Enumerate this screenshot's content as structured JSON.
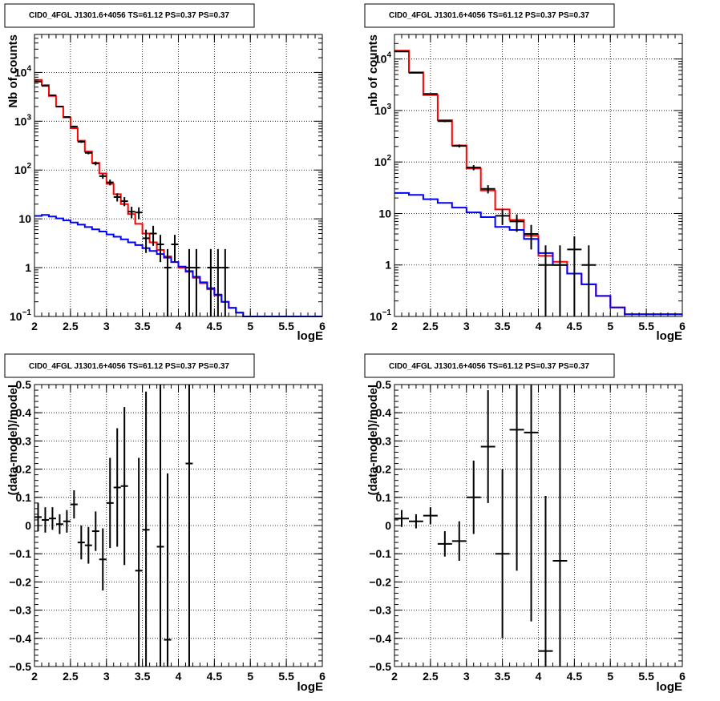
{
  "colors": {
    "data": "#000000",
    "total_model": "#ff0000",
    "background_model": "#0000ff",
    "grid": "#000000"
  },
  "chart_data": [
    {
      "id": "counts-left",
      "type": "line",
      "title": "CID0_4FGL J1301.6+4056 TS=61.12 PS=0.37 PS=0.37",
      "xlabel": "logE",
      "ylabel": "Nb of counts",
      "y_scale": "log",
      "xlim": [
        2,
        6
      ],
      "ylim": [
        0.1,
        60000
      ],
      "xticks": [
        "2",
        "2.5",
        "3",
        "3.5",
        "4",
        "4.5",
        "5",
        "5.5",
        "6"
      ],
      "yticks": [
        {
          "value": 0.1,
          "base": "10",
          "exp": "−1"
        },
        {
          "value": 1,
          "label": "1"
        },
        {
          "value": 10,
          "label": "10"
        },
        {
          "value": 100,
          "base": "10",
          "exp": "2"
        },
        {
          "value": 1000,
          "base": "10",
          "exp": "3"
        },
        {
          "value": 10000,
          "base": "10",
          "exp": "4"
        }
      ],
      "grid": true,
      "model_edges": [
        2.0,
        2.1,
        2.2,
        2.3,
        2.4,
        2.5,
        2.6,
        2.7,
        2.8,
        2.9,
        3.0,
        3.1,
        3.2,
        3.3,
        3.4,
        3.5,
        3.6,
        3.7,
        3.8,
        3.9,
        4.0,
        4.1,
        4.2,
        4.3,
        4.4,
        4.5,
        4.6,
        4.7,
        4.8,
        4.9,
        5.0,
        5.1,
        5.2,
        5.3,
        5.4,
        5.5,
        5.6,
        5.7,
        5.8,
        5.9,
        6.0
      ],
      "total_model": [
        7000,
        5500,
        3300,
        2000,
        1200,
        720,
        400,
        240,
        140,
        85,
        52,
        32,
        20,
        12.5,
        7.9,
        5,
        3.3,
        2.3,
        1.7,
        1.3,
        1,
        0.82,
        0.62,
        0.48,
        0.36,
        0.27,
        0.2,
        0.15,
        0.12,
        0.1,
        0.1,
        0.1,
        0.1,
        0.1,
        0.1,
        0.1,
        0.1,
        0.1,
        0.1,
        0.1
      ],
      "background_model": [
        11.5,
        12,
        11.2,
        10.2,
        9.3,
        8.4,
        7.6,
        6.8,
        6.1,
        5.5,
        4.8,
        4.3,
        3.8,
        3.3,
        2.9,
        2.5,
        2.2,
        1.9,
        1.6,
        1.3,
        1.05,
        0.85,
        0.65,
        0.5,
        0.38,
        0.28,
        0.2,
        0.15,
        0.12,
        0.1,
        0.1,
        0.1,
        0.1,
        0.1,
        0.1,
        0.1,
        0.1,
        0.1,
        0.1,
        0.1
      ],
      "data_points": [
        {
          "x": 2.05,
          "y": 6500,
          "yerr": [
            80,
            80
          ]
        },
        {
          "x": 2.15,
          "y": 5300,
          "yerr": [
            73,
            73
          ]
        },
        {
          "x": 2.25,
          "y": 3400,
          "yerr": [
            58,
            58
          ]
        },
        {
          "x": 2.35,
          "y": 1990,
          "yerr": [
            45,
            45
          ]
        },
        {
          "x": 2.45,
          "y": 1220,
          "yerr": [
            35,
            35
          ]
        },
        {
          "x": 2.55,
          "y": 780,
          "yerr": [
            28,
            28
          ]
        },
        {
          "x": 2.65,
          "y": 380,
          "yerr": [
            20,
            20
          ]
        },
        {
          "x": 2.75,
          "y": 225,
          "yerr": [
            15,
            15
          ]
        },
        {
          "x": 2.85,
          "y": 137,
          "yerr": [
            12,
            12
          ]
        },
        {
          "x": 2.95,
          "y": 75,
          "yerr": [
            9,
            9
          ]
        },
        {
          "x": 3.05,
          "y": 56,
          "yerr": [
            7.5,
            7.5
          ]
        },
        {
          "x": 3.15,
          "y": 28,
          "yerr": [
            5.3,
            5.3
          ]
        },
        {
          "x": 3.25,
          "y": 23,
          "yerr": [
            4.8,
            4.8
          ]
        },
        {
          "x": 3.35,
          "y": 14,
          "yerr": [
            3.7,
            3.7
          ]
        },
        {
          "x": 3.45,
          "y": 13.5,
          "yerr": [
            3.7,
            3.7
          ]
        },
        {
          "x": 3.55,
          "y": 4,
          "yerr": [
            2,
            2
          ]
        },
        {
          "x": 3.65,
          "y": 5,
          "yerr": [
            2.2,
            2.2
          ]
        },
        {
          "x": 3.75,
          "y": 3,
          "yerr": [
            1.7,
            1.7
          ]
        },
        {
          "x": 3.85,
          "y": 1,
          "yerr": [
            0.95,
            1.4
          ]
        },
        {
          "x": 3.95,
          "y": 3,
          "yerr": [
            1.7,
            1.7
          ]
        },
        {
          "x": 4.15,
          "y": 1,
          "yerr": [
            0.95,
            1.4
          ]
        },
        {
          "x": 4.25,
          "y": 1,
          "yerr": [
            0.95,
            1.4
          ]
        },
        {
          "x": 4.45,
          "y": 1,
          "yerr": [
            0.95,
            1.4
          ]
        },
        {
          "x": 4.55,
          "y": 1,
          "yerr": [
            0.95,
            1.4
          ]
        },
        {
          "x": 4.65,
          "y": 1,
          "yerr": [
            0.95,
            1.4
          ]
        }
      ]
    },
    {
      "id": "counts-right",
      "type": "line",
      "title": "CID0_4FGL J1301.6+4056 TS=61.12 PS=0.37 PS=0.37",
      "xlabel": "logE",
      "ylabel": "nb of counts",
      "y_scale": "log",
      "xlim": [
        2,
        6
      ],
      "ylim": [
        0.1,
        30000
      ],
      "xticks": [
        "2",
        "2.5",
        "3",
        "3.5",
        "4",
        "4.5",
        "5",
        "5.5",
        "6"
      ],
      "yticks": [
        {
          "value": 0.1,
          "base": "10",
          "exp": "−1"
        },
        {
          "value": 1,
          "label": "1"
        },
        {
          "value": 10,
          "label": "10"
        },
        {
          "value": 100,
          "base": "10",
          "exp": "2"
        },
        {
          "value": 1000,
          "base": "10",
          "exp": "3"
        },
        {
          "value": 10000,
          "base": "10",
          "exp": "4"
        }
      ],
      "grid": true,
      "model_edges": [
        2.0,
        2.2,
        2.4,
        2.6,
        2.8,
        3.0,
        3.2,
        3.4,
        3.6,
        3.8,
        4.0,
        4.2,
        4.4,
        4.6,
        4.8,
        5.0,
        5.2,
        5.4,
        5.6,
        5.8,
        6.0
      ],
      "total_model": [
        14500,
        5500,
        2000,
        650,
        210,
        75,
        28,
        12,
        7.5,
        3.7,
        1.5,
        1.15,
        0.68,
        0.42,
        0.25,
        0.15,
        0.11,
        0.11,
        0.11,
        0.11
      ],
      "background_model": [
        25,
        23,
        19,
        16,
        13,
        10.5,
        8.5,
        5.5,
        4.8,
        3.2,
        1.7,
        1,
        0.68,
        0.42,
        0.25,
        0.15,
        0.11,
        0.11,
        0.11,
        0.11
      ],
      "data_points": [
        {
          "x": 2.1,
          "y": 14000,
          "yerr": [
            120,
            120
          ]
        },
        {
          "x": 2.3,
          "y": 5400,
          "yerr": [
            74,
            74
          ]
        },
        {
          "x": 2.5,
          "y": 2100,
          "yerr": [
            46,
            46
          ]
        },
        {
          "x": 2.7,
          "y": 620,
          "yerr": [
            25,
            25
          ]
        },
        {
          "x": 2.9,
          "y": 205,
          "yerr": [
            14,
            14
          ]
        },
        {
          "x": 3.1,
          "y": 78,
          "yerr": [
            9,
            9
          ]
        },
        {
          "x": 3.3,
          "y": 30,
          "yerr": [
            5.5,
            5.5
          ]
        },
        {
          "x": 3.5,
          "y": 9,
          "yerr": [
            3,
            3
          ]
        },
        {
          "x": 3.7,
          "y": 7,
          "yerr": [
            2.6,
            2.6
          ]
        },
        {
          "x": 3.9,
          "y": 4,
          "yerr": [
            2,
            2
          ]
        },
        {
          "x": 4.1,
          "y": 1,
          "yerr": [
            0.95,
            1.4
          ]
        },
        {
          "x": 4.3,
          "y": 1,
          "yerr": [
            0.95,
            1.4
          ]
        },
        {
          "x": 4.5,
          "y": 2,
          "yerr": [
            1.9,
            1.6
          ]
        },
        {
          "x": 4.7,
          "y": 1,
          "yerr": [
            0.95,
            1.4
          ]
        }
      ]
    },
    {
      "id": "residuals-left",
      "type": "scatter",
      "title": "CID0_4FGL J1301.6+4056 TS=61.12 PS=0.37 PS=0.37",
      "xlabel": "logE",
      "ylabel": "(data-model)/model",
      "y_scale": "linear",
      "xlim": [
        2,
        6
      ],
      "ylim": [
        -0.5,
        0.5
      ],
      "xticks": [
        "2",
        "2.5",
        "3",
        "3.5",
        "4",
        "4.5",
        "5",
        "5.5",
        "6"
      ],
      "yticks": [
        -0.5,
        -0.4,
        -0.3,
        -0.2,
        -0.1,
        0,
        0.1,
        0.2,
        0.3,
        0.4,
        0.5
      ],
      "ytick_labels": [
        "−0.5",
        "−0.4",
        "−0.3",
        "−0.2",
        "−0.1",
        "0",
        "0.1",
        "0.2",
        "0.3",
        "0.4",
        "0.5"
      ],
      "grid": true,
      "bin_halfwidth": 0.05,
      "data_points": [
        {
          "x": 2.05,
          "y": 0.03,
          "yerr": 0.05
        },
        {
          "x": 2.15,
          "y": 0.02,
          "yerr": 0.045
        },
        {
          "x": 2.25,
          "y": 0.025,
          "yerr": 0.04
        },
        {
          "x": 2.35,
          "y": 0.005,
          "yerr": 0.035
        },
        {
          "x": 2.45,
          "y": 0.015,
          "yerr": 0.04
        },
        {
          "x": 2.55,
          "y": 0.075,
          "yerr": 0.05
        },
        {
          "x": 2.65,
          "y": -0.06,
          "yerr": 0.06
        },
        {
          "x": 2.75,
          "y": -0.07,
          "yerr": 0.065
        },
        {
          "x": 2.85,
          "y": -0.02,
          "yerr": 0.07
        },
        {
          "x": 2.95,
          "y": -0.12,
          "yerr": 0.11
        },
        {
          "x": 3.05,
          "y": 0.08,
          "yerr": 0.16
        },
        {
          "x": 3.15,
          "y": 0.135,
          "yerr": 0.21
        },
        {
          "x": 3.25,
          "y": 0.14,
          "yerr": 0.28
        },
        {
          "x": 3.45,
          "y": -0.16,
          "yerr": 0.4
        },
        {
          "x": 3.55,
          "y": -0.015,
          "yerr": 0.49
        },
        {
          "x": 3.75,
          "y": -0.075,
          "yerr": 0.58
        },
        {
          "x": 3.85,
          "y": -0.405,
          "yerr": 0.59
        },
        {
          "x": 4.15,
          "y": 0.22,
          "yerr": 0.9
        }
      ]
    },
    {
      "id": "residuals-right",
      "type": "scatter",
      "title": "CID0_4FGL J1301.6+4056 TS=61.12 PS=0.37 PS=0.37",
      "xlabel": "logE",
      "ylabel": "(data-model)/model",
      "y_scale": "linear",
      "xlim": [
        2,
        6
      ],
      "ylim": [
        -0.5,
        0.5
      ],
      "xticks": [
        "2",
        "2.5",
        "3",
        "3.5",
        "4",
        "4.5",
        "5",
        "5.5",
        "6"
      ],
      "yticks": [
        -0.5,
        -0.4,
        -0.3,
        -0.2,
        -0.1,
        0,
        0.1,
        0.2,
        0.3,
        0.4,
        0.5
      ],
      "ytick_labels": [
        "−0.5",
        "−0.4",
        "−0.3",
        "−0.2",
        "−0.1",
        "0",
        "0.1",
        "0.2",
        "0.3",
        "0.4",
        "0.5"
      ],
      "grid": true,
      "bin_halfwidth": 0.1,
      "data_points": [
        {
          "x": 2.1,
          "y": 0.025,
          "yerr": 0.03
        },
        {
          "x": 2.3,
          "y": 0.015,
          "yerr": 0.025
        },
        {
          "x": 2.5,
          "y": 0.035,
          "yerr": 0.03
        },
        {
          "x": 2.7,
          "y": -0.065,
          "yerr": 0.045
        },
        {
          "x": 2.9,
          "y": -0.055,
          "yerr": 0.07
        },
        {
          "x": 3.1,
          "y": 0.1,
          "yerr": 0.13
        },
        {
          "x": 3.3,
          "y": 0.28,
          "yerr": 0.2
        },
        {
          "x": 3.5,
          "y": -0.1,
          "yerr": 0.3
        },
        {
          "x": 3.7,
          "y": 0.34,
          "yerr": 0.5
        },
        {
          "x": 3.9,
          "y": 0.33,
          "yerr": 0.67
        },
        {
          "x": 4.1,
          "y": -0.445,
          "yerr": 0.55
        },
        {
          "x": 4.3,
          "y": -0.125,
          "yerr": 0.9
        }
      ]
    }
  ]
}
